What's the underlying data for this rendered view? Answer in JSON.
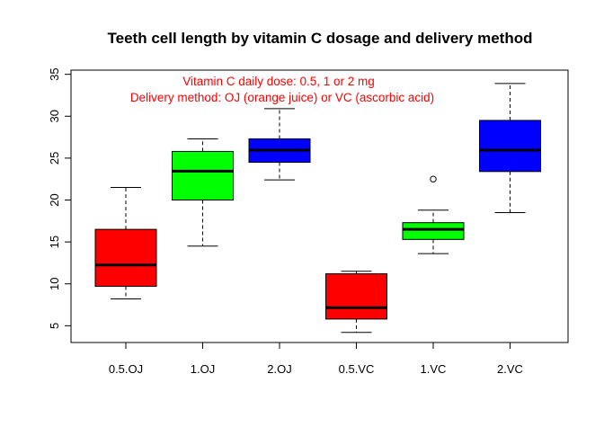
{
  "chart_data": {
    "type": "boxplot",
    "title": "Teeth cell length by vitamin C dosage and delivery method",
    "xlabel": "",
    "ylabel": "",
    "ylim": [
      3,
      35.5
    ],
    "yticks": [
      5,
      10,
      15,
      20,
      25,
      30,
      35
    ],
    "grid": false,
    "categories": [
      "0.5.OJ",
      "1.OJ",
      "2.OJ",
      "0.5.VC",
      "1.VC",
      "2.VC"
    ],
    "boxes": [
      {
        "label": "0.5.OJ",
        "color": "#ff0000",
        "whisker_low": 8.2,
        "q1": 9.7,
        "median": 12.25,
        "q3": 16.5,
        "whisker_high": 21.5,
        "outliers": []
      },
      {
        "label": "1.OJ",
        "color": "#00ff00",
        "whisker_low": 14.5,
        "q1": 20.0,
        "median": 23.45,
        "q3": 25.8,
        "whisker_high": 27.3,
        "outliers": []
      },
      {
        "label": "2.OJ",
        "color": "#0000ff",
        "whisker_low": 22.4,
        "q1": 24.5,
        "median": 25.95,
        "q3": 27.3,
        "whisker_high": 30.9,
        "outliers": []
      },
      {
        "label": "0.5.VC",
        "color": "#ff0000",
        "whisker_low": 4.2,
        "q1": 5.8,
        "median": 7.15,
        "q3": 11.2,
        "whisker_high": 11.5,
        "outliers": []
      },
      {
        "label": "1.VC",
        "color": "#00ff00",
        "whisker_low": 13.6,
        "q1": 15.3,
        "median": 16.5,
        "q3": 17.3,
        "whisker_high": 18.8,
        "outliers": [
          22.5
        ]
      },
      {
        "label": "2.VC",
        "color": "#0000ff",
        "whisker_low": 18.5,
        "q1": 23.4,
        "median": 25.95,
        "q3": 29.5,
        "whisker_high": 33.9,
        "outliers": []
      }
    ],
    "annotations": [
      {
        "text": "Vitamin C daily dose: 0.5, 1 or 2 mg",
        "color": "#ff0000"
      },
      {
        "text": "Delivery method: OJ (orange juice) or VC (ascorbic acid)",
        "color": "#ff0000"
      }
    ]
  }
}
